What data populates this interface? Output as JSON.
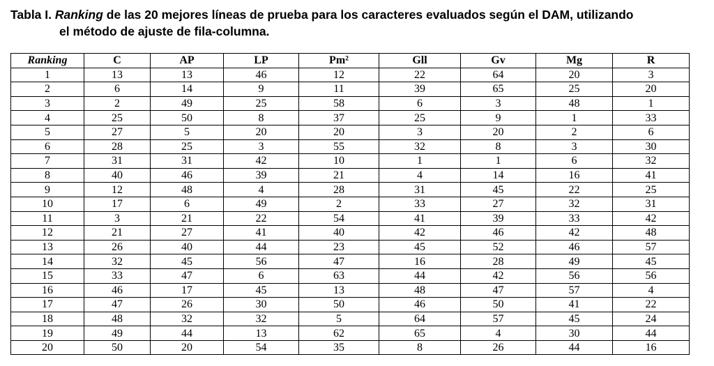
{
  "title": {
    "label": "Tabla I.",
    "emphasis": "Ranking",
    "line1": "de las 20 mejores líneas de prueba para los caracteres evaluados según el DAM, utilizando",
    "line2": "el método de ajuste de fila-columna."
  },
  "table": {
    "header": [
      "Ranking",
      "C",
      "AP",
      "LP",
      "Pm²",
      "Gll",
      "Gv",
      "Mg",
      "R"
    ],
    "rows": [
      [
        1,
        13,
        13,
        46,
        12,
        22,
        64,
        20,
        3
      ],
      [
        2,
        6,
        14,
        9,
        11,
        39,
        65,
        25,
        20
      ],
      [
        3,
        2,
        49,
        25,
        58,
        6,
        3,
        48,
        1
      ],
      [
        4,
        25,
        50,
        8,
        37,
        25,
        9,
        1,
        33
      ],
      [
        5,
        27,
        5,
        20,
        20,
        3,
        20,
        2,
        6
      ],
      [
        6,
        28,
        25,
        3,
        55,
        32,
        8,
        3,
        30
      ],
      [
        7,
        31,
        31,
        42,
        10,
        1,
        1,
        6,
        32
      ],
      [
        8,
        40,
        46,
        39,
        21,
        4,
        14,
        16,
        41
      ],
      [
        9,
        12,
        48,
        4,
        28,
        31,
        45,
        22,
        25
      ],
      [
        10,
        17,
        6,
        49,
        2,
        33,
        27,
        32,
        31
      ],
      [
        11,
        3,
        21,
        22,
        54,
        41,
        39,
        33,
        42
      ],
      [
        12,
        21,
        27,
        41,
        40,
        42,
        46,
        42,
        48
      ],
      [
        13,
        26,
        40,
        44,
        23,
        45,
        52,
        46,
        57
      ],
      [
        14,
        32,
        45,
        56,
        47,
        16,
        28,
        49,
        45
      ],
      [
        15,
        33,
        47,
        6,
        63,
        44,
        42,
        56,
        56
      ],
      [
        16,
        46,
        17,
        45,
        13,
        48,
        47,
        57,
        4
      ],
      [
        17,
        47,
        26,
        30,
        50,
        46,
        50,
        41,
        22
      ],
      [
        18,
        48,
        32,
        32,
        5,
        64,
        57,
        45,
        24
      ],
      [
        19,
        49,
        44,
        13,
        62,
        65,
        4,
        30,
        44
      ],
      [
        20,
        50,
        20,
        54,
        35,
        8,
        26,
        44,
        16
      ]
    ]
  }
}
